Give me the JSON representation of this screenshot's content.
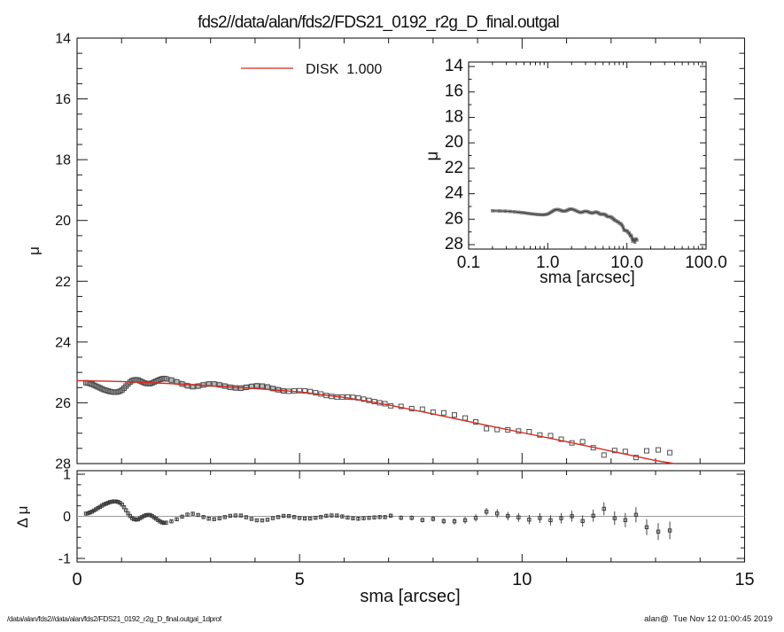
{
  "title": "fds2//data/alan/fds2/FDS21_0192_r2g_D_final.outgal",
  "legend": {
    "label": "DISK  1.000",
    "color": "#d42a20"
  },
  "axes": {
    "xlabel": "sma [arcsec]",
    "ylabel_main": "μ",
    "ylabel_residual": "Δ μ",
    "inset_xlabel": "sma [arcsec]",
    "inset_ylabel": "μ"
  },
  "footer": {
    "left": "/data/alan/fds2//data/alan/fds2/FDS21_0192_r2g_D_final.outgal_1dprof",
    "right": "alan@  Tue Nov 12 01:00:45 2019"
  },
  "colors": {
    "frame": "#1a1a1a",
    "model": "#d42a20",
    "marker": "#4f4f4f",
    "marker_halo": "#b3b3b3",
    "residual_marker": "#3a3a3a",
    "error_bar": "#2f2f2f",
    "zero_line": "#9a9a9a",
    "inset_line": "#3d3d3d",
    "inset_marker": "#7d7d7d",
    "inset_halo": "#a6a6a6",
    "text": "#111111"
  },
  "chart_data": [
    {
      "id": "main",
      "type": "scatter",
      "xlabel": "sma [arcsec]",
      "ylabel": "μ",
      "xlim": [
        0,
        15
      ],
      "ylim": [
        28,
        14
      ],
      "x_major_ticks": [
        0,
        5,
        10,
        15
      ],
      "x_tick_labels": [
        "0",
        "5",
        "10",
        "15"
      ],
      "x_minor_step": 1,
      "y_major_ticks": [
        14,
        16,
        18,
        20,
        22,
        24,
        26,
        28
      ],
      "y_tick_labels": [
        "14",
        "16",
        "18",
        "20",
        "22",
        "24",
        "26",
        "28"
      ],
      "y_minor_step": 0.5,
      "grid": false,
      "legend_position": "top-left-inside",
      "series": [
        {
          "name": "surface-brightness-profile",
          "marker": "open-square",
          "points": [
            [
              0.2,
              25.34
            ],
            [
              0.245,
              25.35
            ],
            [
              0.29,
              25.37
            ],
            [
              0.335,
              25.39
            ],
            [
              0.38,
              25.42
            ],
            [
              0.425,
              25.45
            ],
            [
              0.47,
              25.48
            ],
            [
              0.515,
              25.51
            ],
            [
              0.56,
              25.54
            ],
            [
              0.605,
              25.57
            ],
            [
              0.65,
              25.59
            ],
            [
              0.695,
              25.61
            ],
            [
              0.74,
              25.63
            ],
            [
              0.785,
              25.64
            ],
            [
              0.83,
              25.65
            ],
            [
              0.875,
              25.65
            ],
            [
              0.92,
              25.64
            ],
            [
              0.965,
              25.62
            ],
            [
              1.01,
              25.58
            ],
            [
              1.055,
              25.52
            ],
            [
              1.1,
              25.45
            ],
            [
              1.145,
              25.38
            ],
            [
              1.19,
              25.32
            ],
            [
              1.235,
              25.27
            ],
            [
              1.28,
              25.25
            ],
            [
              1.325,
              25.24
            ],
            [
              1.37,
              25.25
            ],
            [
              1.415,
              25.28
            ],
            [
              1.46,
              25.31
            ],
            [
              1.505,
              25.34
            ],
            [
              1.55,
              25.36
            ],
            [
              1.595,
              25.37
            ],
            [
              1.64,
              25.37
            ],
            [
              1.685,
              25.35
            ],
            [
              1.73,
              25.32
            ],
            [
              1.775,
              25.29
            ],
            [
              1.82,
              25.26
            ],
            [
              1.865,
              25.23
            ],
            [
              1.91,
              25.21
            ],
            [
              1.955,
              25.2
            ],
            [
              2.0,
              25.21
            ],
            [
              2.12,
              25.25,
              0.025
            ],
            [
              2.24,
              25.31,
              0.025
            ],
            [
              2.36,
              25.38,
              0.025
            ],
            [
              2.48,
              25.44,
              0.025
            ],
            [
              2.6,
              25.47,
              0.025
            ],
            [
              2.72,
              25.45,
              0.025
            ],
            [
              2.84,
              25.41,
              0.025
            ],
            [
              2.96,
              25.38,
              0.025
            ],
            [
              3.08,
              25.38,
              0.025
            ],
            [
              3.2,
              25.41,
              0.025
            ],
            [
              3.32,
              25.45,
              0.025
            ],
            [
              3.44,
              25.49,
              0.025
            ],
            [
              3.56,
              25.51,
              0.025
            ],
            [
              3.68,
              25.52,
              0.025
            ],
            [
              3.8,
              25.49,
              0.025
            ],
            [
              3.92,
              25.46,
              0.025
            ],
            [
              4.04,
              25.44,
              0.025
            ],
            [
              4.16,
              25.45,
              0.025
            ],
            [
              4.28,
              25.48,
              0.025
            ],
            [
              4.4,
              25.53,
              0.025
            ],
            [
              4.52,
              25.57,
              0.035
            ],
            [
              4.64,
              25.61,
              0.035
            ],
            [
              4.76,
              25.62,
              0.035
            ],
            [
              4.88,
              25.61,
              0.035
            ],
            [
              5.0,
              25.6,
              0.035
            ],
            [
              5.12,
              25.61,
              0.035
            ],
            [
              5.24,
              25.63,
              0.035
            ],
            [
              5.36,
              25.67,
              0.035
            ],
            [
              5.48,
              25.71,
              0.035
            ],
            [
              5.6,
              25.76,
              0.035
            ],
            [
              5.72,
              25.79,
              0.035
            ],
            [
              5.84,
              25.81,
              0.035
            ],
            [
              5.96,
              25.81,
              0.035
            ],
            [
              6.08,
              25.81,
              0.045
            ],
            [
              6.2,
              25.82,
              0.045
            ],
            [
              6.32,
              25.84,
              0.045
            ],
            [
              6.44,
              25.88,
              0.045
            ],
            [
              6.56,
              25.92,
              0.045
            ],
            [
              6.68,
              25.96,
              0.045
            ],
            [
              6.8,
              26.0,
              0.045
            ],
            [
              6.92,
              26.03,
              0.045
            ],
            [
              7.05,
              26.1,
              0.05
            ],
            [
              7.28,
              26.12,
              0.055
            ],
            [
              7.52,
              26.19,
              0.06
            ],
            [
              7.76,
              26.21,
              0.06
            ],
            [
              8.0,
              26.31,
              0.065
            ],
            [
              8.24,
              26.33,
              0.07
            ],
            [
              8.48,
              26.4,
              0.075
            ],
            [
              8.72,
              26.5,
              0.08
            ],
            [
              8.96,
              26.63,
              0.085
            ],
            [
              9.2,
              26.85,
              0.09
            ],
            [
              9.44,
              26.88,
              0.1
            ],
            [
              9.68,
              26.89,
              0.1
            ],
            [
              9.92,
              26.93,
              0.105
            ],
            [
              10.16,
              26.95,
              0.11
            ],
            [
              10.4,
              27.06,
              0.115
            ],
            [
              10.64,
              27.08,
              0.12
            ],
            [
              10.88,
              27.2,
              0.125
            ],
            [
              11.12,
              27.32,
              0.13
            ],
            [
              11.36,
              27.28,
              0.135
            ],
            [
              11.6,
              27.48,
              0.145
            ],
            [
              11.84,
              27.72,
              0.155
            ],
            [
              12.08,
              27.57,
              0.16
            ],
            [
              12.32,
              27.6,
              0.17
            ],
            [
              12.56,
              27.8,
              0.18
            ],
            [
              12.8,
              27.58,
              0.19
            ],
            [
              13.06,
              27.55,
              0.2
            ],
            [
              13.32,
              27.64,
              0.21
            ]
          ]
        },
        {
          "name": "DISK 1.000",
          "type": "line",
          "points": [
            [
              0.0,
              25.27
            ],
            [
              1.0,
              25.3
            ],
            [
              2.0,
              25.36
            ],
            [
              3.0,
              25.44
            ],
            [
              4.0,
              25.53
            ],
            [
              5.0,
              25.64
            ],
            [
              6.0,
              25.82
            ],
            [
              6.5,
              25.94
            ],
            [
              7.0,
              26.07
            ],
            [
              8.0,
              26.37
            ],
            [
              9.0,
              26.68
            ],
            [
              10.0,
              26.98
            ],
            [
              11.0,
              27.28
            ],
            [
              12.0,
              27.59
            ],
            [
              13.0,
              27.9
            ],
            [
              13.42,
              28.0
            ]
          ]
        }
      ]
    },
    {
      "id": "inset",
      "type": "line",
      "xscale": "log",
      "xlabel": "sma [arcsec]",
      "ylabel": "μ",
      "xlim": [
        0.1,
        100
      ],
      "ylim": [
        28,
        14
      ],
      "x_major_ticks": [
        0.1,
        1,
        10,
        100
      ],
      "x_tick_labels": [
        "0.1",
        "1.0",
        "10.0",
        "100.0"
      ],
      "y_major_ticks": [
        14,
        16,
        18,
        20,
        22,
        24,
        26,
        28
      ],
      "y_tick_labels": [
        "14",
        "16",
        "18",
        "20",
        "22",
        "24",
        "26",
        "28"
      ],
      "y_minor_step": 1,
      "grid": false,
      "series_ref": "chart_data[0].series[0].points"
    },
    {
      "id": "residuals",
      "type": "scatter",
      "ylabel": "Δ μ",
      "xlim": [
        0,
        15
      ],
      "ylim": [
        -1,
        1
      ],
      "x_major_ticks": [
        0,
        5,
        10,
        15
      ],
      "x_minor_step": 1,
      "y_major_ticks": [
        1,
        0,
        -1
      ],
      "y_tick_labels": [
        "1",
        "0",
        "-1"
      ],
      "y_minor_step": 0.25,
      "zero_line": true,
      "derivation": "profile points minus DISK model, with per-point error bars"
    }
  ]
}
